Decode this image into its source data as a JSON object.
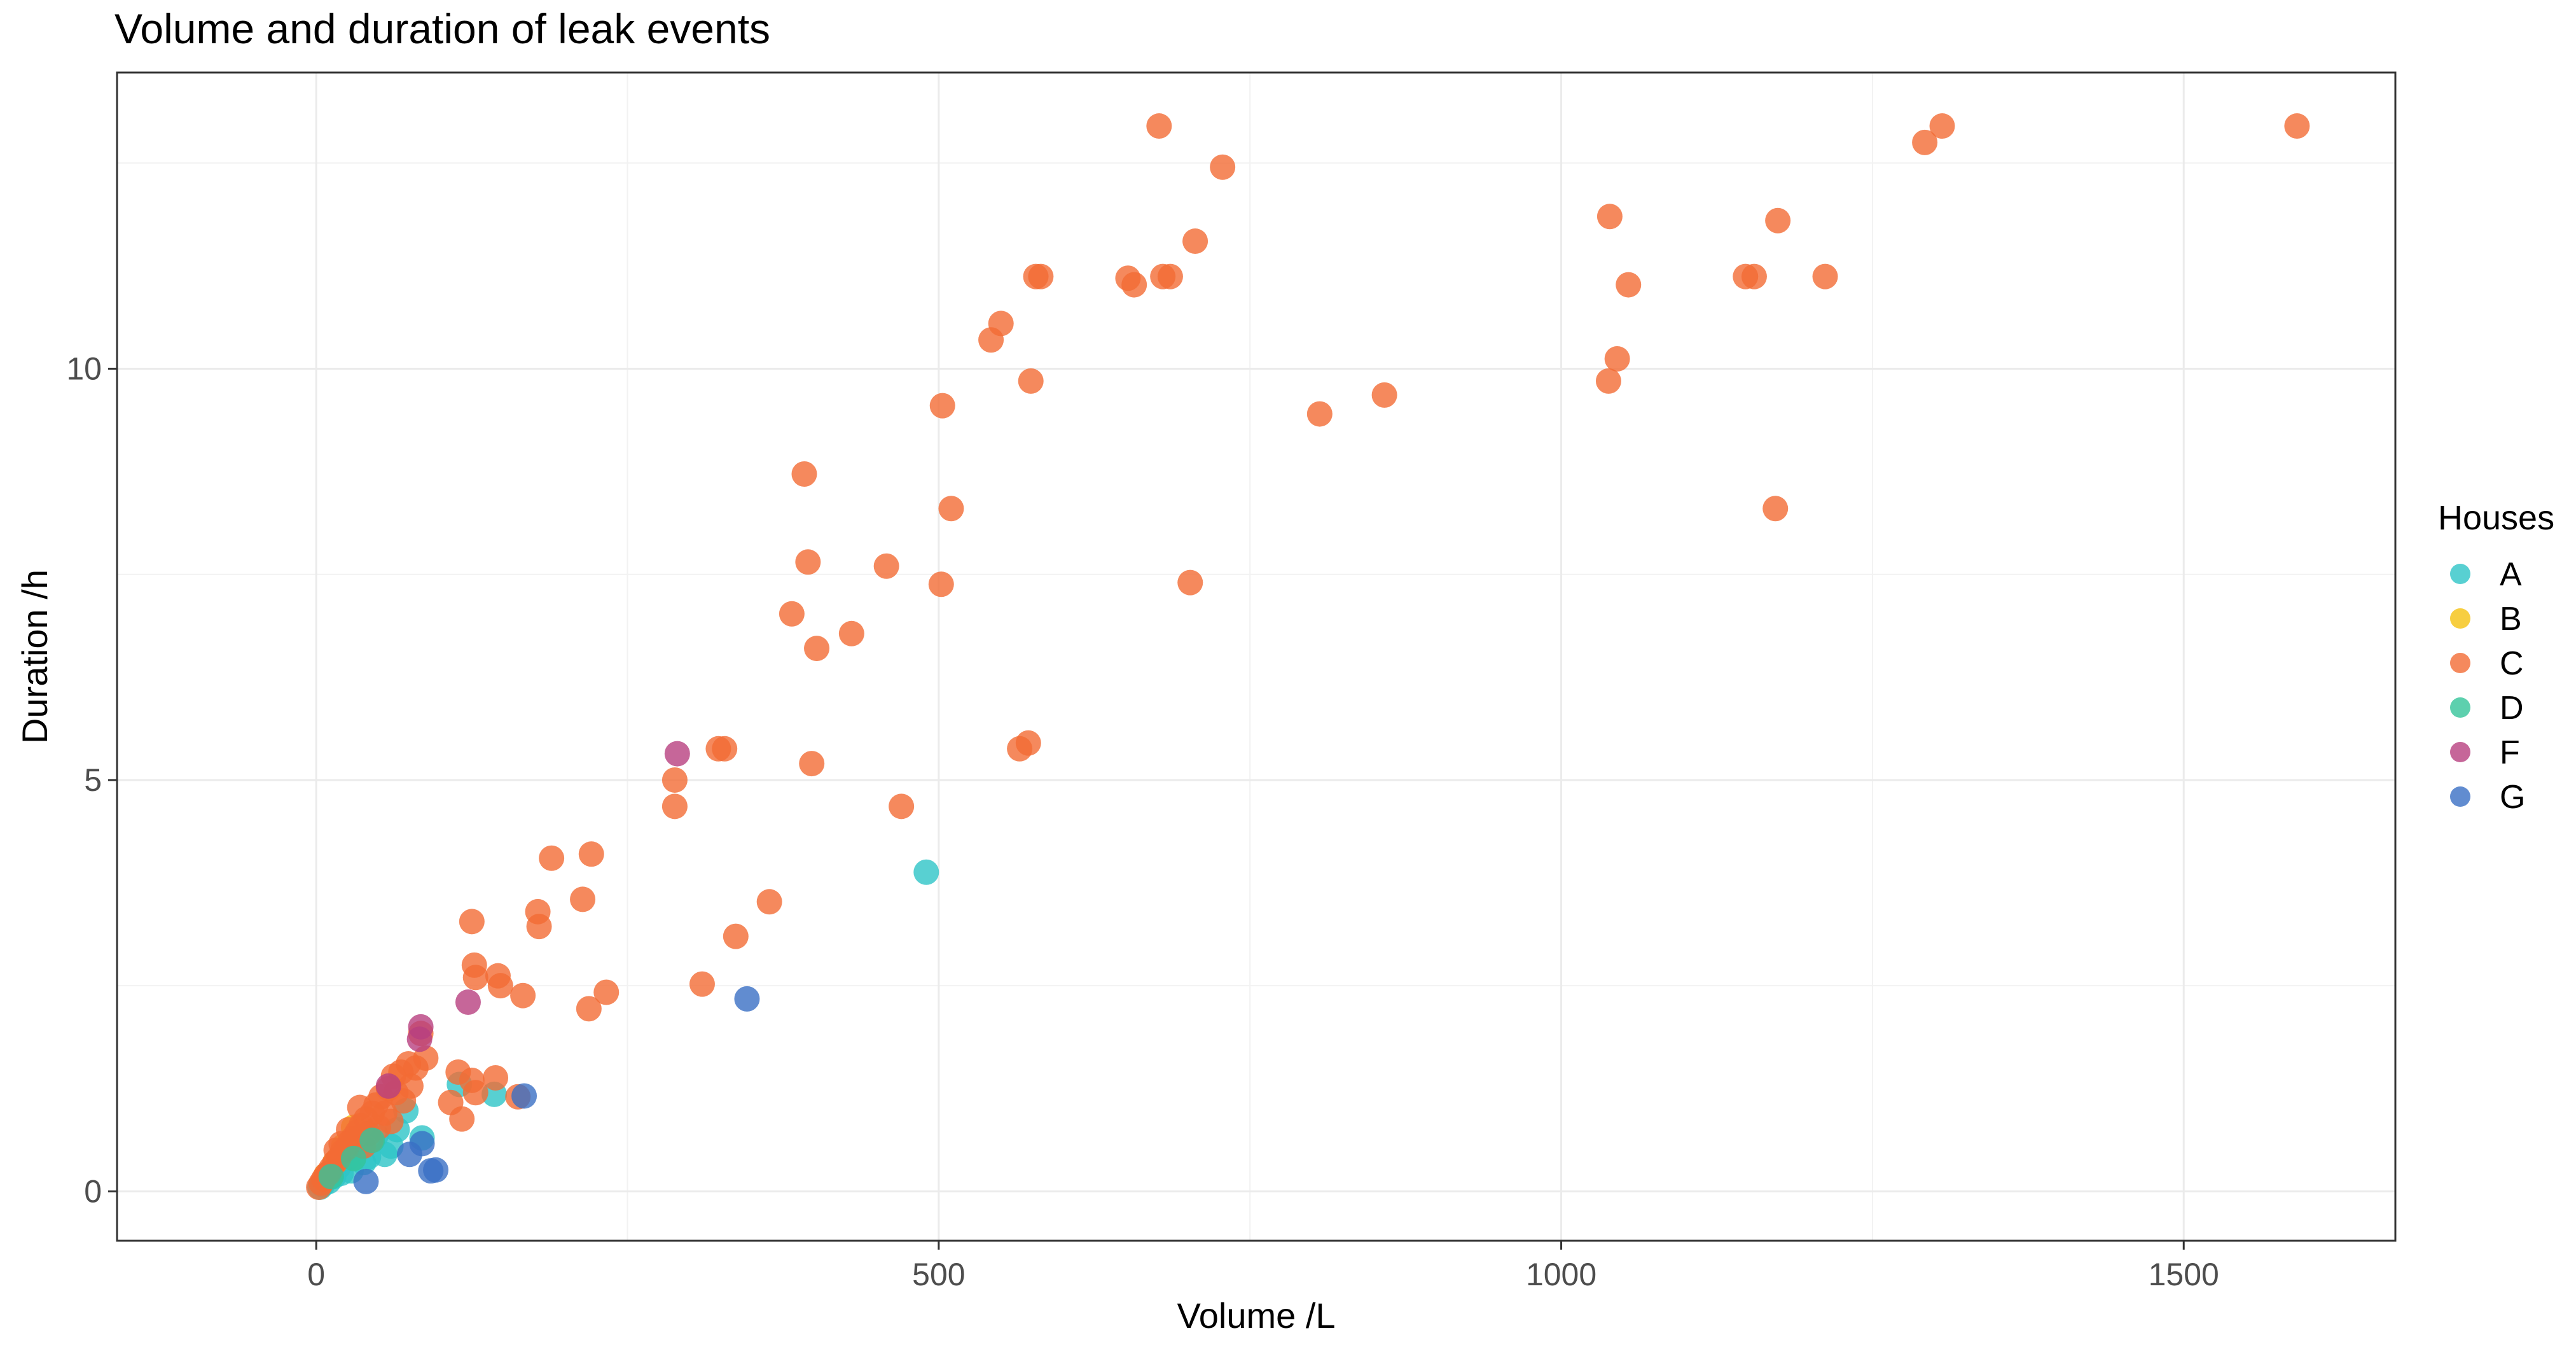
{
  "chart_data": {
    "type": "scatter",
    "title": "Volume and duration of leak events",
    "xlabel": "Volume /L",
    "ylabel": "Duration /h",
    "xlim": [
      -160,
      1670
    ],
    "ylim": [
      -0.6,
      13.6
    ],
    "x_ticks": [
      0,
      500,
      1000,
      1500
    ],
    "x_tick_labels": [
      "0",
      "500",
      "1000",
      "1500"
    ],
    "y_ticks": [
      0,
      5,
      10
    ],
    "y_tick_labels": [
      "0",
      "5",
      "10"
    ],
    "grid": true,
    "legend": {
      "title": "Houses",
      "position": "right"
    },
    "series": [
      {
        "name": "A",
        "color": "#2ec4c7",
        "points": [
          [
            490,
            3.88
          ],
          [
            143,
            1.18
          ],
          [
            115,
            1.3
          ],
          [
            85,
            0.65
          ],
          [
            72,
            0.98
          ],
          [
            65,
            0.75
          ],
          [
            60,
            0.55
          ],
          [
            55,
            0.45
          ],
          [
            48,
            0.68
          ],
          [
            42,
            0.42
          ],
          [
            38,
            0.35
          ],
          [
            32,
            0.55
          ],
          [
            28,
            0.25
          ],
          [
            25,
            0.4
          ],
          [
            20,
            0.22
          ],
          [
            18,
            0.3
          ],
          [
            14,
            0.18
          ],
          [
            10,
            0.12
          ],
          [
            8,
            0.15
          ],
          [
            5,
            0.08
          ],
          [
            3,
            0.05
          ]
        ]
      },
      {
        "name": "B",
        "color": "#f5c210",
        "points": [
          [
            30,
            0.78
          ],
          [
            22,
            0.55
          ],
          [
            15,
            0.35
          ],
          [
            8,
            0.2
          ]
        ]
      },
      {
        "name": "C",
        "color": "#f26b35",
        "points": [
          [
            1591,
            12.95
          ],
          [
            1306,
            12.95
          ],
          [
            1292,
            12.75
          ],
          [
            677,
            12.95
          ],
          [
            728,
            12.45
          ],
          [
            1039,
            11.85
          ],
          [
            1174,
            11.8
          ],
          [
            706,
            11.55
          ],
          [
            1148,
            11.12
          ],
          [
            1155,
            11.12
          ],
          [
            1212,
            11.12
          ],
          [
            1054,
            11.02
          ],
          [
            578,
            11.12
          ],
          [
            582,
            11.12
          ],
          [
            652,
            11.1
          ],
          [
            657,
            11.02
          ],
          [
            680,
            11.12
          ],
          [
            686,
            11.12
          ],
          [
            550,
            10.55
          ],
          [
            542,
            10.35
          ],
          [
            1045,
            10.12
          ],
          [
            1038,
            9.85
          ],
          [
            574,
            9.85
          ],
          [
            858,
            9.68
          ],
          [
            806,
            9.45
          ],
          [
            503,
            9.55
          ],
          [
            392,
            8.72
          ],
          [
            510,
            8.3
          ],
          [
            1172,
            8.3
          ],
          [
            395,
            7.65
          ],
          [
            458,
            7.6
          ],
          [
            502,
            7.38
          ],
          [
            702,
            7.4
          ],
          [
            382,
            7.02
          ],
          [
            430,
            6.78
          ],
          [
            402,
            6.6
          ],
          [
            572,
            5.45
          ],
          [
            565,
            5.38
          ],
          [
            323,
            5.38
          ],
          [
            328,
            5.38
          ],
          [
            398,
            5.2
          ],
          [
            288,
            5.0
          ],
          [
            288,
            4.68
          ],
          [
            470,
            4.68
          ],
          [
            189,
            4.05
          ],
          [
            221,
            4.1
          ],
          [
            214,
            3.55
          ],
          [
            364,
            3.52
          ],
          [
            125,
            3.28
          ],
          [
            178,
            3.4
          ],
          [
            179,
            3.22
          ],
          [
            337,
            3.1
          ],
          [
            127,
            2.75
          ],
          [
            128,
            2.6
          ],
          [
            146,
            2.62
          ],
          [
            148,
            2.5
          ],
          [
            166,
            2.38
          ],
          [
            310,
            2.52
          ],
          [
            233,
            2.42
          ],
          [
            219,
            2.22
          ],
          [
            125,
            1.35
          ],
          [
            114,
            1.45
          ],
          [
            144,
            1.38
          ],
          [
            128,
            1.2
          ],
          [
            108,
            1.08
          ],
          [
            162,
            1.15
          ],
          [
            117,
            0.88
          ],
          [
            84,
            1.92
          ],
          [
            88,
            1.62
          ],
          [
            80,
            1.5
          ],
          [
            74,
            1.55
          ],
          [
            68,
            1.45
          ],
          [
            62,
            1.4
          ],
          [
            58,
            1.25
          ],
          [
            52,
            1.15
          ],
          [
            48,
            1.05
          ],
          [
            45,
            0.95
          ],
          [
            40,
            0.88
          ],
          [
            36,
            0.8
          ],
          [
            33,
            0.72
          ],
          [
            30,
            0.65
          ],
          [
            27,
            0.6
          ],
          [
            24,
            0.52
          ],
          [
            21,
            0.48
          ],
          [
            18,
            0.4
          ],
          [
            15,
            0.35
          ],
          [
            12,
            0.28
          ],
          [
            10,
            0.22
          ],
          [
            8,
            0.2
          ],
          [
            6,
            0.15
          ],
          [
            4,
            0.1
          ],
          [
            2,
            0.05
          ],
          [
            35,
            1.02
          ],
          [
            42,
            0.7
          ],
          [
            55,
            0.95
          ],
          [
            64,
            1.2
          ],
          [
            70,
            1.1
          ],
          [
            76,
            1.28
          ],
          [
            50,
            0.78
          ],
          [
            38,
            0.55
          ],
          [
            26,
            0.75
          ],
          [
            20,
            0.58
          ],
          [
            16,
            0.5
          ],
          [
            44,
            0.62
          ],
          [
            60,
            0.85
          ]
        ]
      },
      {
        "name": "D",
        "color": "#35c49a",
        "points": [
          [
            45,
            0.62
          ],
          [
            30,
            0.4
          ],
          [
            12,
            0.18
          ]
        ]
      },
      {
        "name": "F",
        "color": "#b8407f",
        "points": [
          [
            290,
            5.32
          ],
          [
            122,
            2.3
          ],
          [
            84,
            2.0
          ],
          [
            83,
            1.85
          ],
          [
            58,
            1.28
          ]
        ]
      },
      {
        "name": "G",
        "color": "#3a6fc4",
        "points": [
          [
            346,
            2.34
          ],
          [
            167,
            1.16
          ],
          [
            96,
            0.26
          ],
          [
            92,
            0.25
          ],
          [
            85,
            0.58
          ],
          [
            40,
            0.12
          ],
          [
            75,
            0.45
          ]
        ]
      }
    ]
  }
}
